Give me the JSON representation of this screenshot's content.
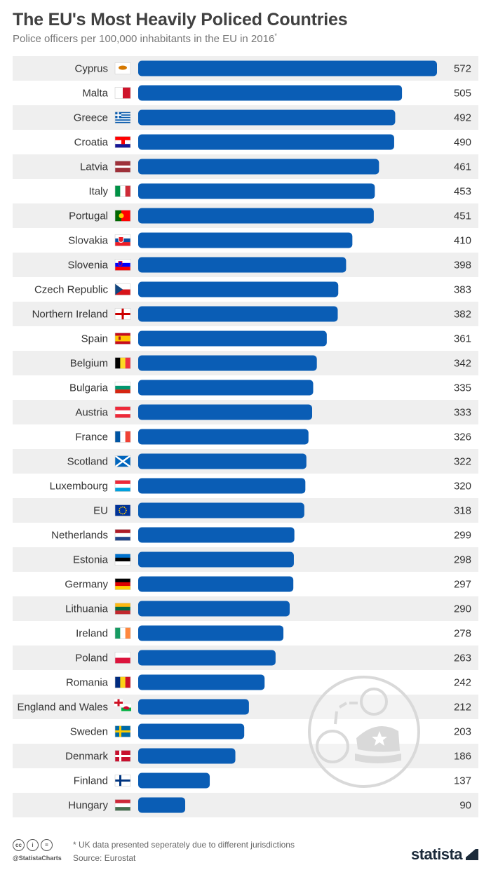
{
  "title": "The EU's Most Heavily Policed Countries",
  "subtitle": "Police officers per 100,000 inhabitants in the EU in 2016",
  "subtitle_marker": "*",
  "footnote": "* UK data presented seperately due to different jurisdictions",
  "source": "Source: Eurostat",
  "handle": "@StatistaCharts",
  "brand": "statista",
  "colors": {
    "bar": "#0a5db5",
    "row_stripe": "#efefef",
    "title": "#414141"
  },
  "chart_data": {
    "type": "bar",
    "orientation": "horizontal",
    "title": "The EU's Most Heavily Policed Countries",
    "subtitle": "Police officers per 100,000 inhabitants in the EU in 2016*",
    "xlim": [
      0,
      572
    ],
    "categories": [
      "Cyprus",
      "Malta",
      "Greece",
      "Croatia",
      "Latvia",
      "Italy",
      "Portugal",
      "Slovakia",
      "Slovenia",
      "Czech Republic",
      "Northern Ireland",
      "Spain",
      "Belgium",
      "Bulgaria",
      "Austria",
      "France",
      "Scotland",
      "Luxembourg",
      "EU",
      "Netherlands",
      "Estonia",
      "Germany",
      "Lithuania",
      "Ireland",
      "Poland",
      "Romania",
      "England and Wales",
      "Sweden",
      "Denmark",
      "Finland",
      "Hungary"
    ],
    "values": [
      572,
      505,
      492,
      490,
      461,
      453,
      451,
      410,
      398,
      383,
      382,
      361,
      342,
      335,
      333,
      326,
      322,
      320,
      318,
      299,
      298,
      297,
      290,
      278,
      263,
      242,
      212,
      203,
      186,
      137,
      90
    ],
    "flag_icons": [
      "cyprus-flag",
      "malta-flag",
      "greece-flag",
      "croatia-flag",
      "latvia-flag",
      "italy-flag",
      "portugal-flag",
      "slovakia-flag",
      "slovenia-flag",
      "czech-republic-flag",
      "northern-ireland-flag",
      "spain-flag",
      "belgium-flag",
      "bulgaria-flag",
      "austria-flag",
      "france-flag",
      "scotland-flag",
      "luxembourg-flag",
      "eu-flag",
      "netherlands-flag",
      "estonia-flag",
      "germany-flag",
      "lithuania-flag",
      "ireland-flag",
      "poland-flag",
      "romania-flag",
      "england-and-wales-flag",
      "sweden-flag",
      "denmark-flag",
      "finland-flag",
      "hungary-flag"
    ],
    "data_labels": true,
    "grid": false,
    "legend": "none"
  }
}
